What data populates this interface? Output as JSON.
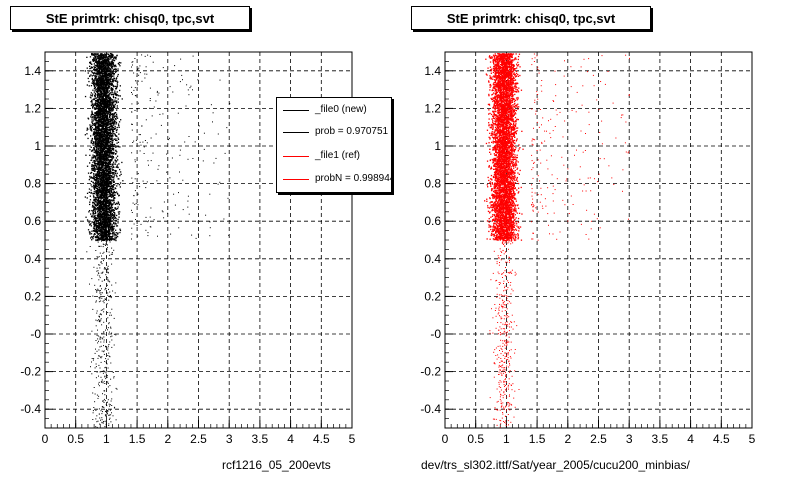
{
  "chart_data": [
    {
      "type": "scatter",
      "title": "StE primtrk: chisq0, tpc,svt",
      "caption": "rcf1216_05_200evts",
      "xlim": [
        0,
        5
      ],
      "ylim": [
        -0.5,
        1.5
      ],
      "x_ticks": [
        "0",
        "0.5",
        "1",
        "1.5",
        "2",
        "2.5",
        "3",
        "3.5",
        "4",
        "4.5",
        "5"
      ],
      "y_ticks": [
        "-0.4",
        "-0.2",
        "-0",
        "0.2",
        "0.4",
        "0.6",
        "0.8",
        "1",
        "1.2",
        "1.4"
      ],
      "y_tick_values": [
        -0.4,
        -0.2,
        0,
        0.2,
        0.4,
        0.6,
        0.8,
        1.0,
        1.2,
        1.4
      ],
      "grid": true,
      "color": "#000000",
      "dense_region": {
        "x_range": [
          0.5,
          1.6
        ],
        "y_range": [
          0.5,
          1.5
        ],
        "x_peak": 0.95
      },
      "sparse_region": {
        "x_range": [
          0.6,
          1.3
        ],
        "y_range": [
          -0.5,
          0.5
        ]
      },
      "legend": [
        {
          "label": "_file0 (new)",
          "color": "#000000"
        },
        {
          "label": "prob = 0.970751",
          "color": "#000000"
        },
        {
          "label": "_file1 (ref)",
          "color": "#ff0000"
        },
        {
          "label": "probN = 0.998944",
          "color": "#ff0000"
        }
      ],
      "legend_placement": "top-right"
    },
    {
      "type": "scatter",
      "title": "StE primtrk: chisq0, tpc,svt",
      "caption": "dev/trs_sl302.ittf/Sat/year_2005/cucu200_minbias/",
      "xlim": [
        0,
        5
      ],
      "ylim": [
        -0.5,
        1.5
      ],
      "x_ticks": [
        "0",
        "0.5",
        "1",
        "1.5",
        "2",
        "2.5",
        "3",
        "3.5",
        "4",
        "4.5",
        "5"
      ],
      "y_ticks": [
        "-0.4",
        "-0.2",
        "-0",
        "0.2",
        "0.4",
        "0.6",
        "0.8",
        "1",
        "1.2",
        "1.4"
      ],
      "y_tick_values": [
        -0.4,
        -0.2,
        0,
        0.2,
        0.4,
        0.6,
        0.8,
        1.0,
        1.2,
        1.4
      ],
      "grid": true,
      "color": "#ff0000",
      "dense_region": {
        "x_range": [
          0.5,
          1.6
        ],
        "y_range": [
          0.5,
          1.5
        ],
        "x_peak": 0.95
      },
      "sparse_region": {
        "x_range": [
          0.6,
          1.3
        ],
        "y_range": [
          -0.5,
          0.5
        ]
      }
    }
  ]
}
